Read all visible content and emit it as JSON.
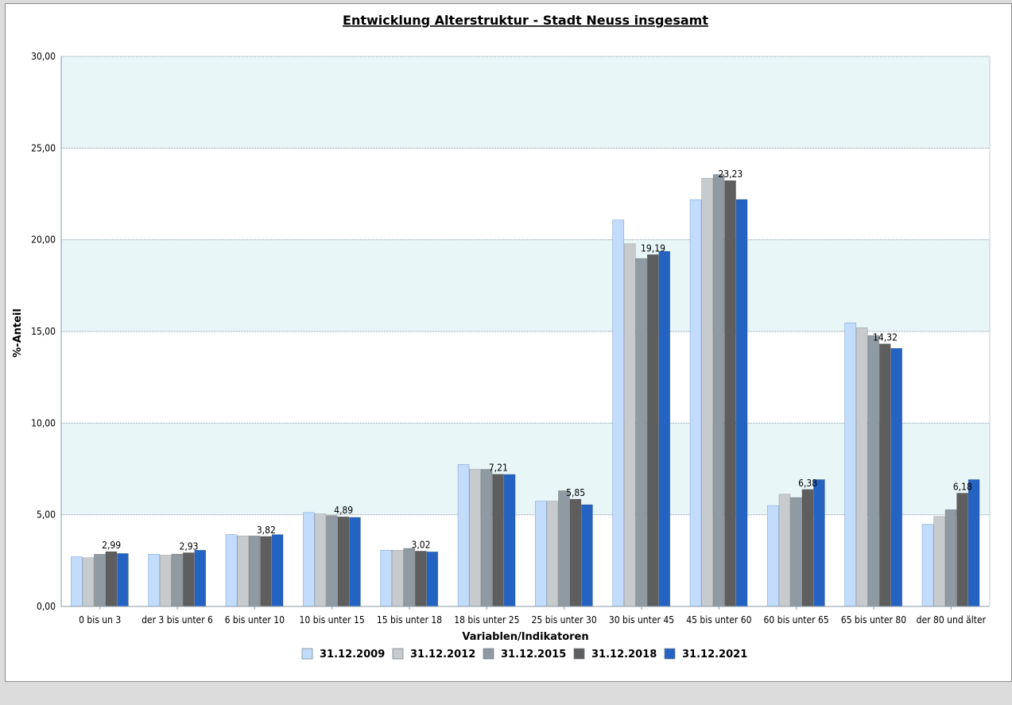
{
  "chart_data": {
    "type": "bar",
    "title": "Entwicklung Alterstruktur - Stadt Neuss insgesamt",
    "xlabel": "Variablen/Indikatoren",
    "ylabel": "%-Anteil",
    "ylim": [
      0,
      30
    ],
    "yticks": [
      "0,00",
      "5,00",
      "10,00",
      "15,00",
      "20,00",
      "25,00",
      "30,00"
    ],
    "grid": true,
    "legend_position": "bottom",
    "categories": [
      "0 bis un 3",
      "der 3 bis unter 6",
      "6 bis unter 10",
      "10 bis unter 15",
      "15 bis unter 18",
      "18 bis unter 25",
      "25 bis unter 30",
      "30 bis unter 45",
      "45 bis unter 60",
      "60 bis unter 65",
      "65 bis unter 80",
      "der 80 und älter"
    ],
    "series": [
      {
        "name": "31.12.2009",
        "color": "#c3dcfb",
        "values": [
          2.71,
          2.84,
          3.92,
          5.12,
          3.07,
          7.74,
          5.74,
          21.08,
          22.19,
          5.5,
          15.47,
          4.48
        ]
      },
      {
        "name": "31.12.2012",
        "color": "#c8cbce",
        "values": [
          2.66,
          2.8,
          3.85,
          5.05,
          3.07,
          7.48,
          5.74,
          19.78,
          23.36,
          6.12,
          15.2,
          4.91
        ]
      },
      {
        "name": "31.12.2015",
        "color": "#8f9aa3",
        "values": [
          2.85,
          2.86,
          3.85,
          4.96,
          3.17,
          7.48,
          6.31,
          18.98,
          23.56,
          5.94,
          14.78,
          5.28
        ]
      },
      {
        "name": "31.12.2018",
        "color": "#5e5e5e",
        "values": [
          2.99,
          2.93,
          3.82,
          4.89,
          3.02,
          7.21,
          5.85,
          19.19,
          23.23,
          6.38,
          14.32,
          6.18
        ]
      },
      {
        "name": "31.12.2021",
        "color": "#2563c2",
        "values": [
          2.89,
          3.07,
          3.92,
          4.86,
          2.98,
          7.2,
          5.55,
          19.37,
          22.2,
          6.92,
          14.08,
          6.92
        ]
      }
    ],
    "data_labels_series": "31.12.2018",
    "data_labels": [
      "2,99",
      "2,93",
      "3,82",
      "4,89",
      "3,02",
      "7,21",
      "5,85",
      "19,19",
      "23,23",
      "6,38",
      "14,32",
      "6,18"
    ]
  }
}
